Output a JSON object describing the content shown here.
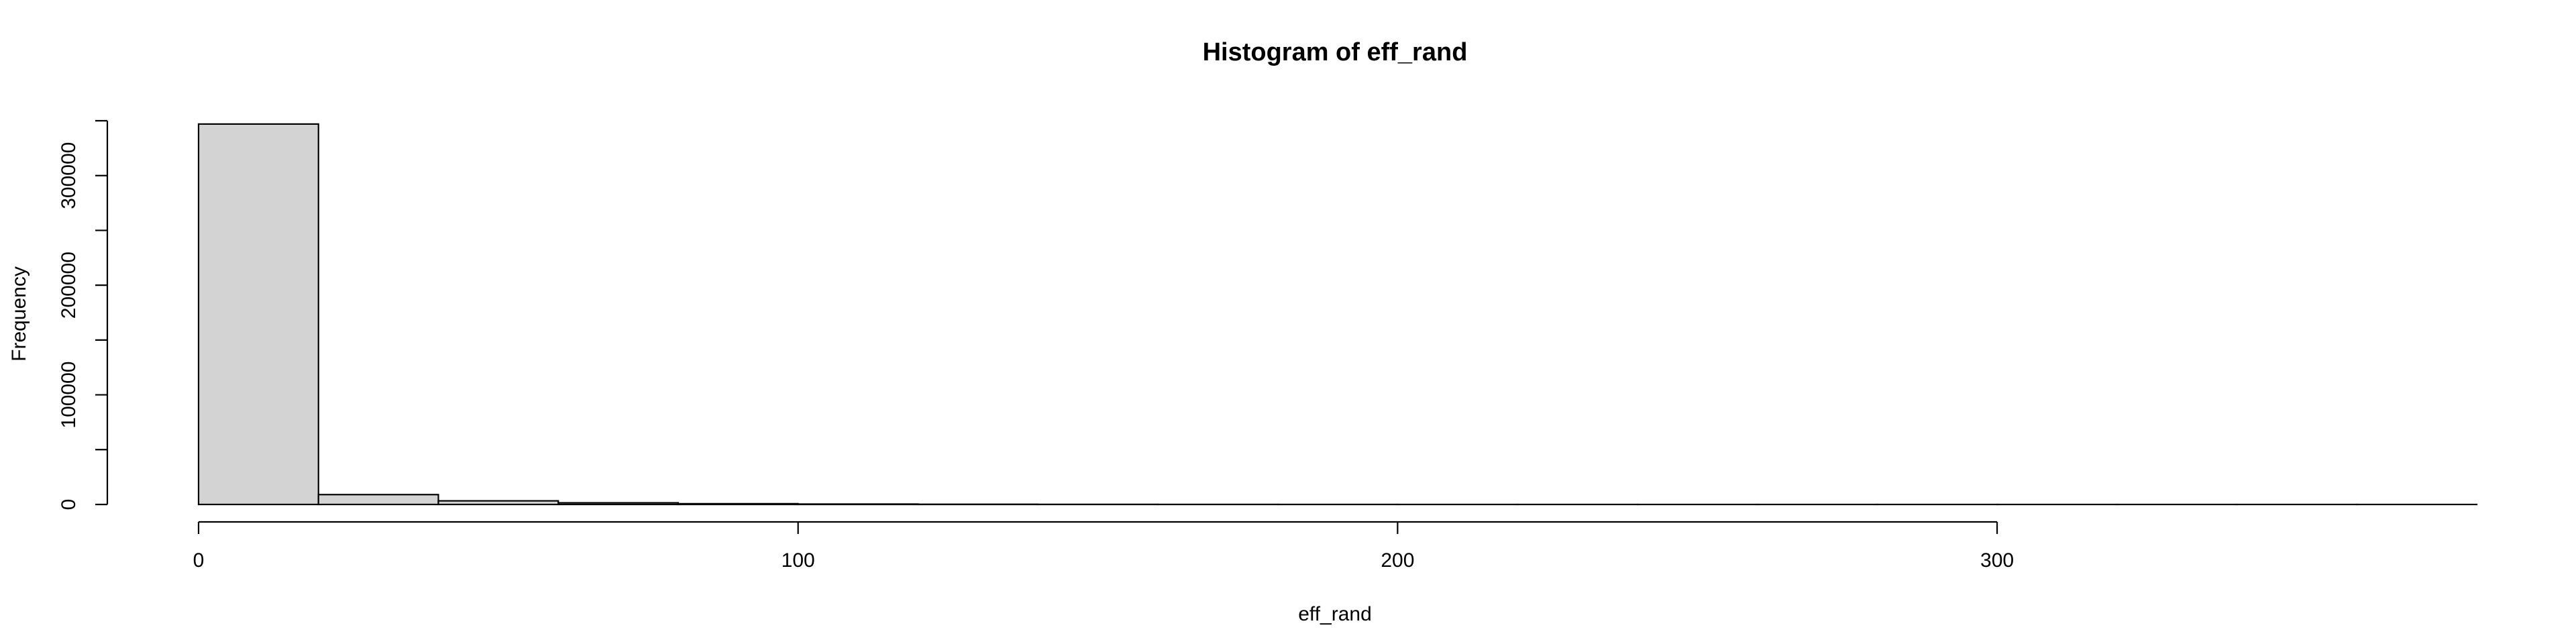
{
  "chart_data": {
    "type": "bar",
    "title": "Histogram of eff_rand",
    "xlabel": "eff_rand",
    "ylabel": "Frequency",
    "bin_width": 20,
    "bins": [
      {
        "start": 0,
        "end": 20,
        "value": 347000
      },
      {
        "start": 20,
        "end": 40,
        "value": 9000
      },
      {
        "start": 40,
        "end": 60,
        "value": 3300
      },
      {
        "start": 60,
        "end": 80,
        "value": 1500
      },
      {
        "start": 80,
        "end": 100,
        "value": 700
      },
      {
        "start": 100,
        "end": 120,
        "value": 350
      },
      {
        "start": 120,
        "end": 140,
        "value": 180
      },
      {
        "start": 140,
        "end": 160,
        "value": 100
      },
      {
        "start": 160,
        "end": 180,
        "value": 60
      },
      {
        "start": 180,
        "end": 200,
        "value": 35
      },
      {
        "start": 200,
        "end": 220,
        "value": 20
      },
      {
        "start": 220,
        "end": 240,
        "value": 12
      },
      {
        "start": 240,
        "end": 260,
        "value": 8
      },
      {
        "start": 260,
        "end": 280,
        "value": 5
      },
      {
        "start": 280,
        "end": 300,
        "value": 3
      },
      {
        "start": 300,
        "end": 320,
        "value": 2
      },
      {
        "start": 320,
        "end": 340,
        "value": 1
      },
      {
        "start": 340,
        "end": 360,
        "value": 1
      },
      {
        "start": 360,
        "end": 380,
        "value": 1
      }
    ],
    "x_ticks": [
      0,
      100,
      200,
      300
    ],
    "x_tick_labels": [
      "0",
      "100",
      "200",
      "300"
    ],
    "y_ticks": [
      0,
      50000,
      100000,
      150000,
      200000,
      250000,
      300000,
      350000
    ],
    "y_tick_labels": [
      "0",
      "",
      "100000",
      "",
      "200000",
      "",
      "300000",
      ""
    ],
    "xlim": [
      0,
      380
    ],
    "ylim": [
      0,
      350000
    ],
    "grid": false,
    "bar_fill": "#d3d3d3",
    "bar_stroke": "#000000"
  }
}
